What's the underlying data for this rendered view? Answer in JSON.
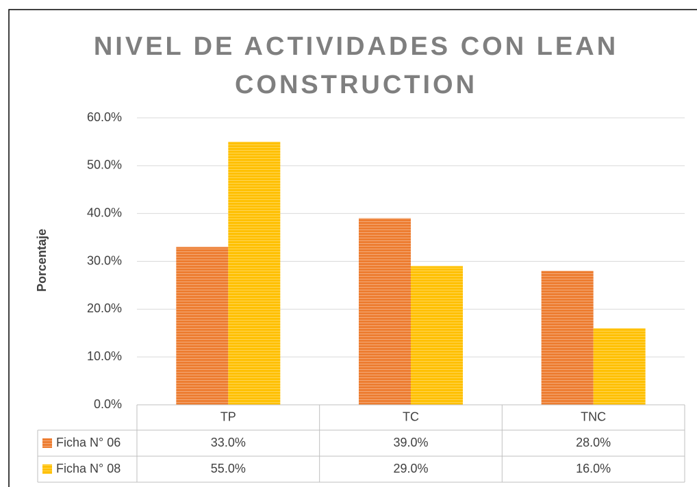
{
  "chart_data": {
    "type": "bar",
    "title": "NIVEL DE ACTIVIDADES CON LEAN CONSTRUCTION",
    "y_label": "Porcentaje",
    "categories": [
      "TP",
      "TC",
      "TNC"
    ],
    "series": [
      {
        "name": "Ficha N° 06",
        "color": "#ED7D31",
        "values": [
          33,
          39,
          28
        ],
        "value_labels": [
          "33.0%",
          "39.0%",
          "28.0%"
        ]
      },
      {
        "name": "Ficha N° 08",
        "color": "#FFC000",
        "values": [
          55,
          29,
          16
        ],
        "value_labels": [
          "55.0%",
          "29.0%",
          "16.0%"
        ]
      }
    ],
    "ylim": [
      0,
      60
    ],
    "yticks": [
      {
        "value": 0,
        "label": "0.0%"
      },
      {
        "value": 10,
        "label": "10.0%"
      },
      {
        "value": 20,
        "label": "20.0%"
      },
      {
        "value": 30,
        "label": "30.0%"
      },
      {
        "value": 40,
        "label": "40.0%"
      },
      {
        "value": 50,
        "label": "50.0%"
      },
      {
        "value": 60,
        "label": "60.0%"
      }
    ],
    "grid": true
  }
}
